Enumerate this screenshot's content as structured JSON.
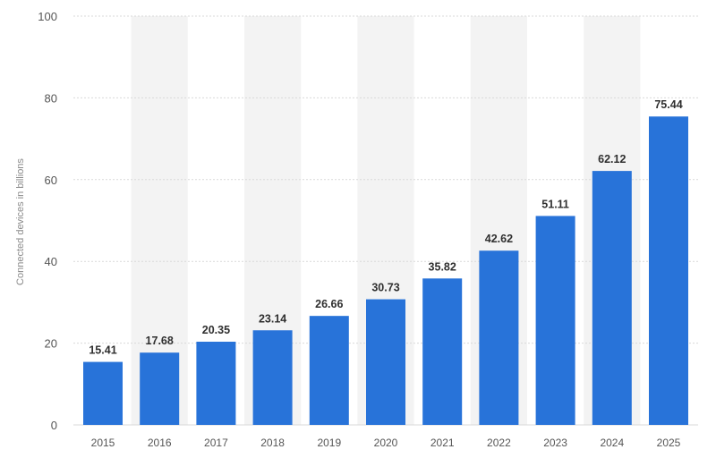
{
  "chart_data": {
    "type": "bar",
    "title": "",
    "xlabel": "",
    "ylabel": "Connected devices in billions",
    "categories": [
      "2015",
      "2016",
      "2017",
      "2018",
      "2019",
      "2020",
      "2021",
      "2022",
      "2023",
      "2024",
      "2025"
    ],
    "values": [
      15.41,
      17.68,
      20.35,
      23.14,
      26.66,
      30.73,
      35.82,
      42.62,
      51.11,
      62.12,
      75.44
    ],
    "data_labels": [
      "15.41",
      "17.68",
      "20.35",
      "23.14",
      "26.66",
      "30.73",
      "35.82",
      "42.62",
      "51.11",
      "62.12",
      "75.44"
    ],
    "ylim": [
      0,
      100
    ],
    "yticks": [
      "0",
      "20",
      "40",
      "60",
      "80",
      "100"
    ],
    "grid": true,
    "legend": "none"
  },
  "colors": {
    "bar": "#2873d9",
    "band": "#f3f3f3",
    "grid": "#d9d9d9"
  }
}
